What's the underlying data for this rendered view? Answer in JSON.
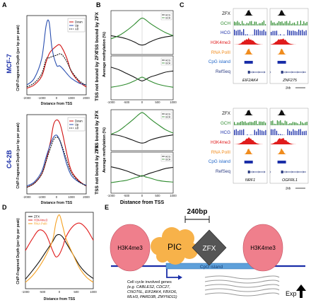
{
  "panel_labels": [
    "A",
    "B",
    "C",
    "D",
    "E"
  ],
  "colors": {
    "down": "#d01010",
    "up": "#2a4fb0",
    "all": "#111111",
    "gch": "#2e8b2e",
    "hcg": "#1a2ea8",
    "k4": "#e01c1c",
    "pol": "#f08c1e",
    "cpg": "#1e64c8",
    "refseq": "#2a3a80",
    "zfx_d": "#111111",
    "h3k4me3_d": "#e01c1c",
    "rnapolii_d": "#f5a020"
  },
  "panelA": {
    "mcf7_label": "MCF-7",
    "c42b_label": "C4-2B",
    "ylabel": "ChIP-Fragment Depth (per bp per peak)",
    "xlabel": "Distance from TSS",
    "legend": [
      "Down",
      "Up",
      "All"
    ],
    "xticks": [
      "-2000",
      "-1000",
      "0",
      "1000",
      "2000"
    ]
  },
  "panelB": {
    "ylabel_bound": "TSS bound by ZFX",
    "ylabel_notbound": "TSS not bound by ZFX",
    "ylabel_meth": "Average methylation (%)",
    "xlabel": "Distance from TSS",
    "legend": [
      "HCG",
      "GCH"
    ],
    "xticks": [
      "-1000",
      "-500",
      "0",
      "500",
      "1000"
    ]
  },
  "panelC": {
    "tracks": [
      "ZFX",
      "GCH",
      "HCG",
      "H3K4me3",
      "RNA PolII",
      "CpG island",
      "RefSeq"
    ],
    "genes_top": [
      "EIF2AK4",
      "ZNF275"
    ],
    "genes_bottom": [
      "NRF1",
      "OGFRL1"
    ],
    "scale": "2kb"
  },
  "panelD": {
    "ylabel": "ChIP-Fragment Depth (per bp per peak)",
    "xlabel": "Distance from TSS",
    "legend": [
      "ZFX",
      "H3K4me3",
      "RNA PolII"
    ],
    "xticks": [
      "-1000",
      "-500",
      "0",
      "500",
      "1000"
    ]
  },
  "panelE": {
    "bp_label": "240bp",
    "h3k4me3": "H3K4me3",
    "pic": "PIC",
    "zfx": "ZFX",
    "cpg": "CpG island",
    "note_lines": [
      "Cell cycle involved genes",
      "(e.g. CABLES2, CDC27,",
      "CNOT6L, EIF2AK4, FBXO6,",
      "MLH3, PARD3B, ZMYND11)"
    ],
    "exp": "Exp"
  },
  "chart_data": [
    {
      "type": "line",
      "panel": "A-MCF-7",
      "x": [
        -2000,
        -1500,
        -1000,
        -700,
        -500,
        -300,
        0,
        200,
        400,
        700,
        1000,
        1500,
        2000
      ],
      "series": [
        {
          "name": "Down",
          "values": [
            1.0,
            1.5,
            2.8,
            5.0,
            6.2,
            6.8,
            7.4,
            7.6,
            7.0,
            5.5,
            3.5,
            2.0,
            1.2
          ]
        },
        {
          "name": "Up",
          "values": [
            1.5,
            2.5,
            5.5,
            10.5,
            11.0,
            7.0,
            4.5,
            4.4,
            4.0,
            3.2,
            2.5,
            1.8,
            1.5
          ]
        },
        {
          "name": "All",
          "values": [
            1.2,
            1.8,
            3.2,
            5.4,
            5.6,
            5.8,
            6.0,
            6.2,
            6.0,
            5.0,
            3.6,
            2.2,
            1.4
          ]
        }
      ],
      "xlabel": "Distance from TSS",
      "ylabel": "ChIP-Fragment Depth (per bp per peak)",
      "xlim": [
        -2000,
        2000
      ],
      "ylim": [
        0,
        12
      ]
    },
    {
      "type": "line",
      "panel": "A-C4-2B",
      "x": [
        -2000,
        -1500,
        -1000,
        -700,
        -400,
        -200,
        0,
        200,
        400,
        700,
        1000,
        1500,
        2000
      ],
      "series": [
        {
          "name": "Down",
          "values": [
            1.0,
            1.6,
            3.0,
            5.0,
            8.0,
            10.5,
            11.2,
            10.8,
            9.2,
            6.0,
            3.5,
            2.0,
            1.2
          ]
        },
        {
          "name": "Up",
          "values": [
            1.2,
            1.8,
            3.4,
            5.6,
            7.6,
            8.6,
            8.9,
            8.2,
            6.8,
            4.4,
            2.8,
            1.8,
            1.3
          ]
        },
        {
          "name": "All",
          "values": [
            1.0,
            1.6,
            3.0,
            5.0,
            7.0,
            8.2,
            8.6,
            8.2,
            7.0,
            5.0,
            3.2,
            1.9,
            1.2
          ]
        }
      ],
      "xlabel": "Distance from TSS",
      "ylabel": "ChIP-Fragment Depth (per bp per peak)",
      "xlim": [
        -2000,
        2000
      ],
      "ylim": [
        0,
        12
      ]
    },
    {
      "type": "line",
      "panel": "B-MCF-7-bound",
      "x": [
        -1000,
        -750,
        -500,
        -250,
        -100,
        0,
        100,
        250,
        500,
        750,
        1000
      ],
      "series": [
        {
          "name": "HCG",
          "values": [
            30,
            28,
            25,
            20,
            16,
            15,
            16,
            20,
            25,
            28,
            30
          ]
        },
        {
          "name": "GCH",
          "values": [
            25,
            30,
            38,
            48,
            55,
            58,
            56,
            50,
            42,
            35,
            30
          ]
        }
      ],
      "xlim": [
        -1000,
        1000
      ],
      "ylim": [
        0,
        70
      ]
    },
    {
      "type": "line",
      "panel": "B-MCF-7-notbound",
      "x": [
        -1000,
        -750,
        -500,
        -250,
        -100,
        0,
        100,
        250,
        500,
        750,
        1000
      ],
      "series": [
        {
          "name": "HCG",
          "values": [
            52,
            48,
            42,
            36,
            32,
            30,
            32,
            36,
            40,
            44,
            46
          ]
        },
        {
          "name": "GCH",
          "values": [
            20,
            22,
            25,
            30,
            34,
            36,
            34,
            30,
            25,
            22,
            20
          ]
        }
      ],
      "xlim": [
        -1000,
        1000
      ],
      "ylim": [
        0,
        70
      ]
    },
    {
      "type": "line",
      "panel": "B-C4-2B-bound",
      "x": [
        -1000,
        -750,
        -500,
        -250,
        -100,
        0,
        100,
        250,
        500,
        750,
        1000
      ],
      "series": [
        {
          "name": "HCG",
          "values": [
            28,
            26,
            22,
            17,
            14,
            13,
            14,
            18,
            22,
            25,
            27
          ]
        },
        {
          "name": "GCH",
          "values": [
            28,
            34,
            44,
            55,
            62,
            65,
            62,
            55,
            45,
            36,
            30
          ]
        }
      ],
      "xlim": [
        -1000,
        1000
      ],
      "ylim": [
        0,
        70
      ]
    },
    {
      "type": "line",
      "panel": "B-C4-2B-notbound",
      "x": [
        -1000,
        -750,
        -500,
        -250,
        -100,
        0,
        100,
        250,
        500,
        750,
        1000
      ],
      "series": [
        {
          "name": "HCG",
          "values": [
            45,
            42,
            38,
            33,
            30,
            29,
            31,
            34,
            38,
            42,
            44
          ]
        },
        {
          "name": "GCH",
          "values": [
            18,
            20,
            22,
            26,
            28,
            30,
            28,
            26,
            22,
            20,
            19
          ]
        }
      ],
      "xlim": [
        -1000,
        1000
      ],
      "ylim": [
        0,
        70
      ]
    },
    {
      "type": "line",
      "panel": "D",
      "x": [
        -1000,
        -800,
        -600,
        -400,
        -200,
        -100,
        0,
        100,
        200,
        400,
        600,
        800,
        1000
      ],
      "series": [
        {
          "name": "ZFX",
          "values": [
            1.5,
            2.8,
            4.2,
            5.8,
            7.4,
            8.3,
            8.5,
            8.1,
            7.2,
            5.4,
            3.6,
            2.4,
            1.6
          ]
        },
        {
          "name": "H3K4me3",
          "values": [
            6.0,
            7.8,
            9.2,
            8.6,
            6.0,
            5.0,
            5.4,
            6.6,
            8.2,
            9.8,
            10.3,
            9.4,
            7.6
          ]
        },
        {
          "name": "RNA PolII",
          "values": [
            1.0,
            2.0,
            3.4,
            5.2,
            7.6,
            10.4,
            11.6,
            9.8,
            7.8,
            5.4,
            3.2,
            1.8,
            1.0
          ]
        }
      ],
      "xlabel": "Distance from TSS",
      "ylabel": "ChIP-Fragment Depth (per bp per peak)",
      "xlim": [
        -1000,
        1000
      ],
      "ylim": [
        0,
        12
      ]
    }
  ]
}
